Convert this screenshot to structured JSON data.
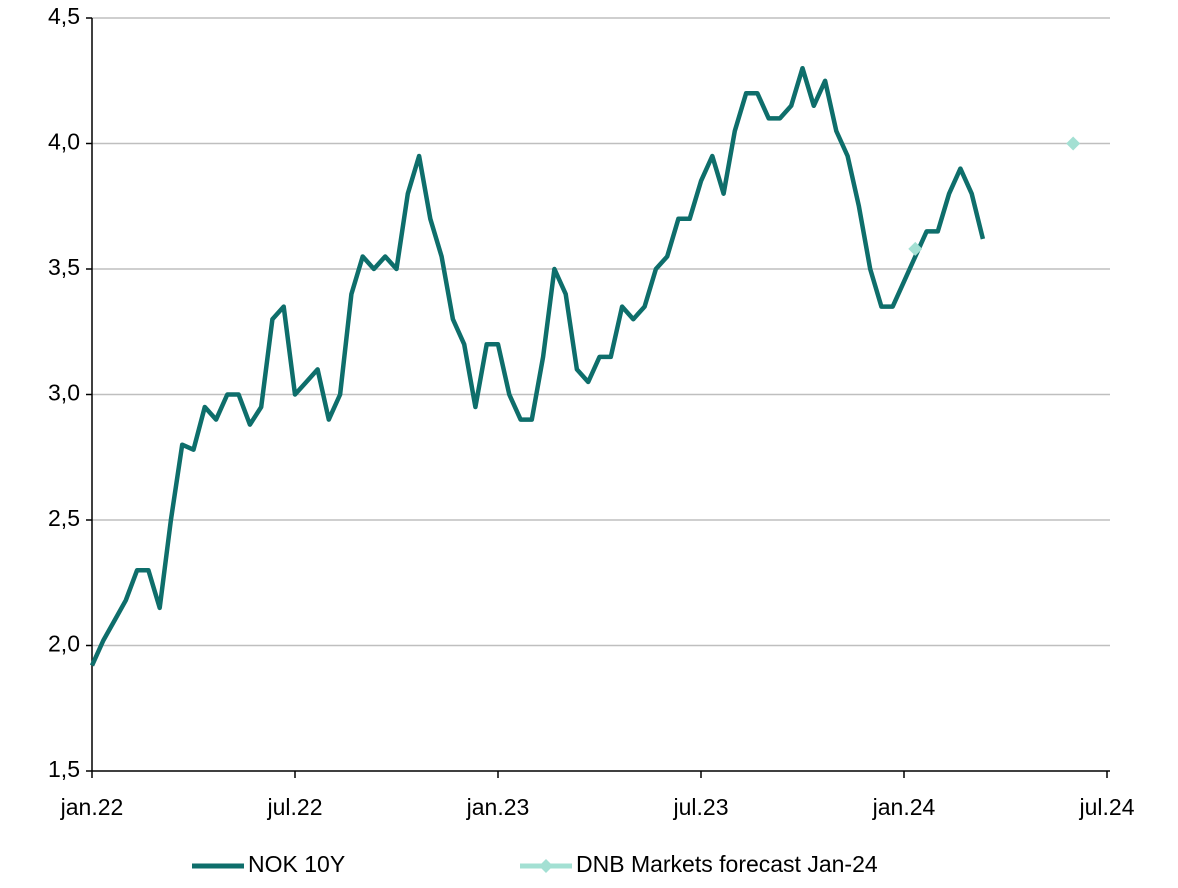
{
  "chart_data": {
    "type": "line",
    "categories": [
      "jan.22",
      null,
      null,
      null,
      null,
      null,
      null,
      null,
      null,
      null,
      null,
      null,
      null,
      null,
      null,
      null,
      null,
      null,
      "jul.22",
      null,
      null,
      null,
      null,
      null,
      null,
      null,
      null,
      null,
      null,
      null,
      null,
      null,
      null,
      null,
      null,
      null,
      "jan.23",
      null,
      null,
      null,
      null,
      null,
      null,
      null,
      null,
      null,
      null,
      null,
      null,
      null,
      null,
      null,
      null,
      null,
      "jul.23",
      null,
      null,
      null,
      null,
      null,
      null,
      null,
      null,
      null,
      null,
      null,
      null,
      null,
      null,
      null,
      null,
      null,
      "jan.24",
      null,
      null,
      null,
      null,
      null,
      null,
      null,
      null,
      null,
      null,
      null,
      null,
      null,
      null,
      null,
      null,
      null,
      "jul.24"
    ],
    "series": [
      {
        "name": "NOK 10Y",
        "color": "#0e6e6b",
        "values": [
          1.92,
          2.02,
          2.1,
          2.18,
          2.3,
          2.3,
          2.15,
          2.5,
          2.8,
          2.78,
          2.95,
          2.9,
          3.0,
          3.0,
          2.88,
          2.95,
          3.3,
          3.35,
          3.0,
          3.05,
          3.1,
          2.9,
          3.0,
          3.4,
          3.55,
          3.5,
          3.55,
          3.5,
          3.8,
          3.95,
          3.7,
          3.55,
          3.3,
          3.2,
          2.95,
          3.2,
          3.2,
          3.0,
          2.9,
          2.9,
          3.15,
          3.5,
          3.4,
          3.1,
          3.05,
          3.15,
          3.15,
          3.35,
          3.3,
          3.35,
          3.5,
          3.55,
          3.7,
          3.7,
          3.85,
          3.95,
          3.8,
          4.05,
          4.2,
          4.2,
          4.1,
          4.1,
          4.15,
          4.3,
          4.15,
          4.25,
          4.05,
          3.95,
          3.75,
          3.5,
          3.35,
          3.35,
          3.45,
          3.55,
          3.65,
          3.65,
          3.8,
          3.9,
          3.8,
          3.62,
          null,
          null,
          null,
          null,
          null,
          null,
          null,
          null,
          null,
          null,
          null
        ]
      },
      {
        "name": "DNB Markets forecast Jan-24",
        "color": "#a3e0d3",
        "values": [
          null,
          null,
          null,
          null,
          null,
          null,
          null,
          null,
          null,
          null,
          null,
          null,
          null,
          null,
          null,
          null,
          null,
          null,
          null,
          null,
          null,
          null,
          null,
          null,
          null,
          null,
          null,
          null,
          null,
          null,
          null,
          null,
          null,
          null,
          null,
          null,
          null,
          null,
          null,
          null,
          null,
          null,
          null,
          null,
          null,
          null,
          null,
          null,
          null,
          null,
          null,
          null,
          null,
          null,
          null,
          null,
          null,
          null,
          null,
          null,
          null,
          null,
          null,
          null,
          null,
          null,
          null,
          null,
          null,
          null,
          null,
          null,
          null,
          3.58,
          null,
          null,
          null,
          null,
          null,
          null,
          null,
          null,
          null,
          null,
          null,
          null,
          null,
          4.0,
          null,
          null,
          null
        ]
      }
    ],
    "ylim": [
      1.5,
      4.5
    ],
    "yticks": [
      {
        "value": 1.5,
        "label": "1,5"
      },
      {
        "value": 2.0,
        "label": "2,0"
      },
      {
        "value": 2.5,
        "label": "2,5"
      },
      {
        "value": 3.0,
        "label": "3,0"
      },
      {
        "value": 3.5,
        "label": "3,5"
      },
      {
        "value": 4.0,
        "label": "4,0"
      },
      {
        "value": 4.5,
        "label": "4,5"
      }
    ],
    "grid": true,
    "legend": "bottom"
  }
}
